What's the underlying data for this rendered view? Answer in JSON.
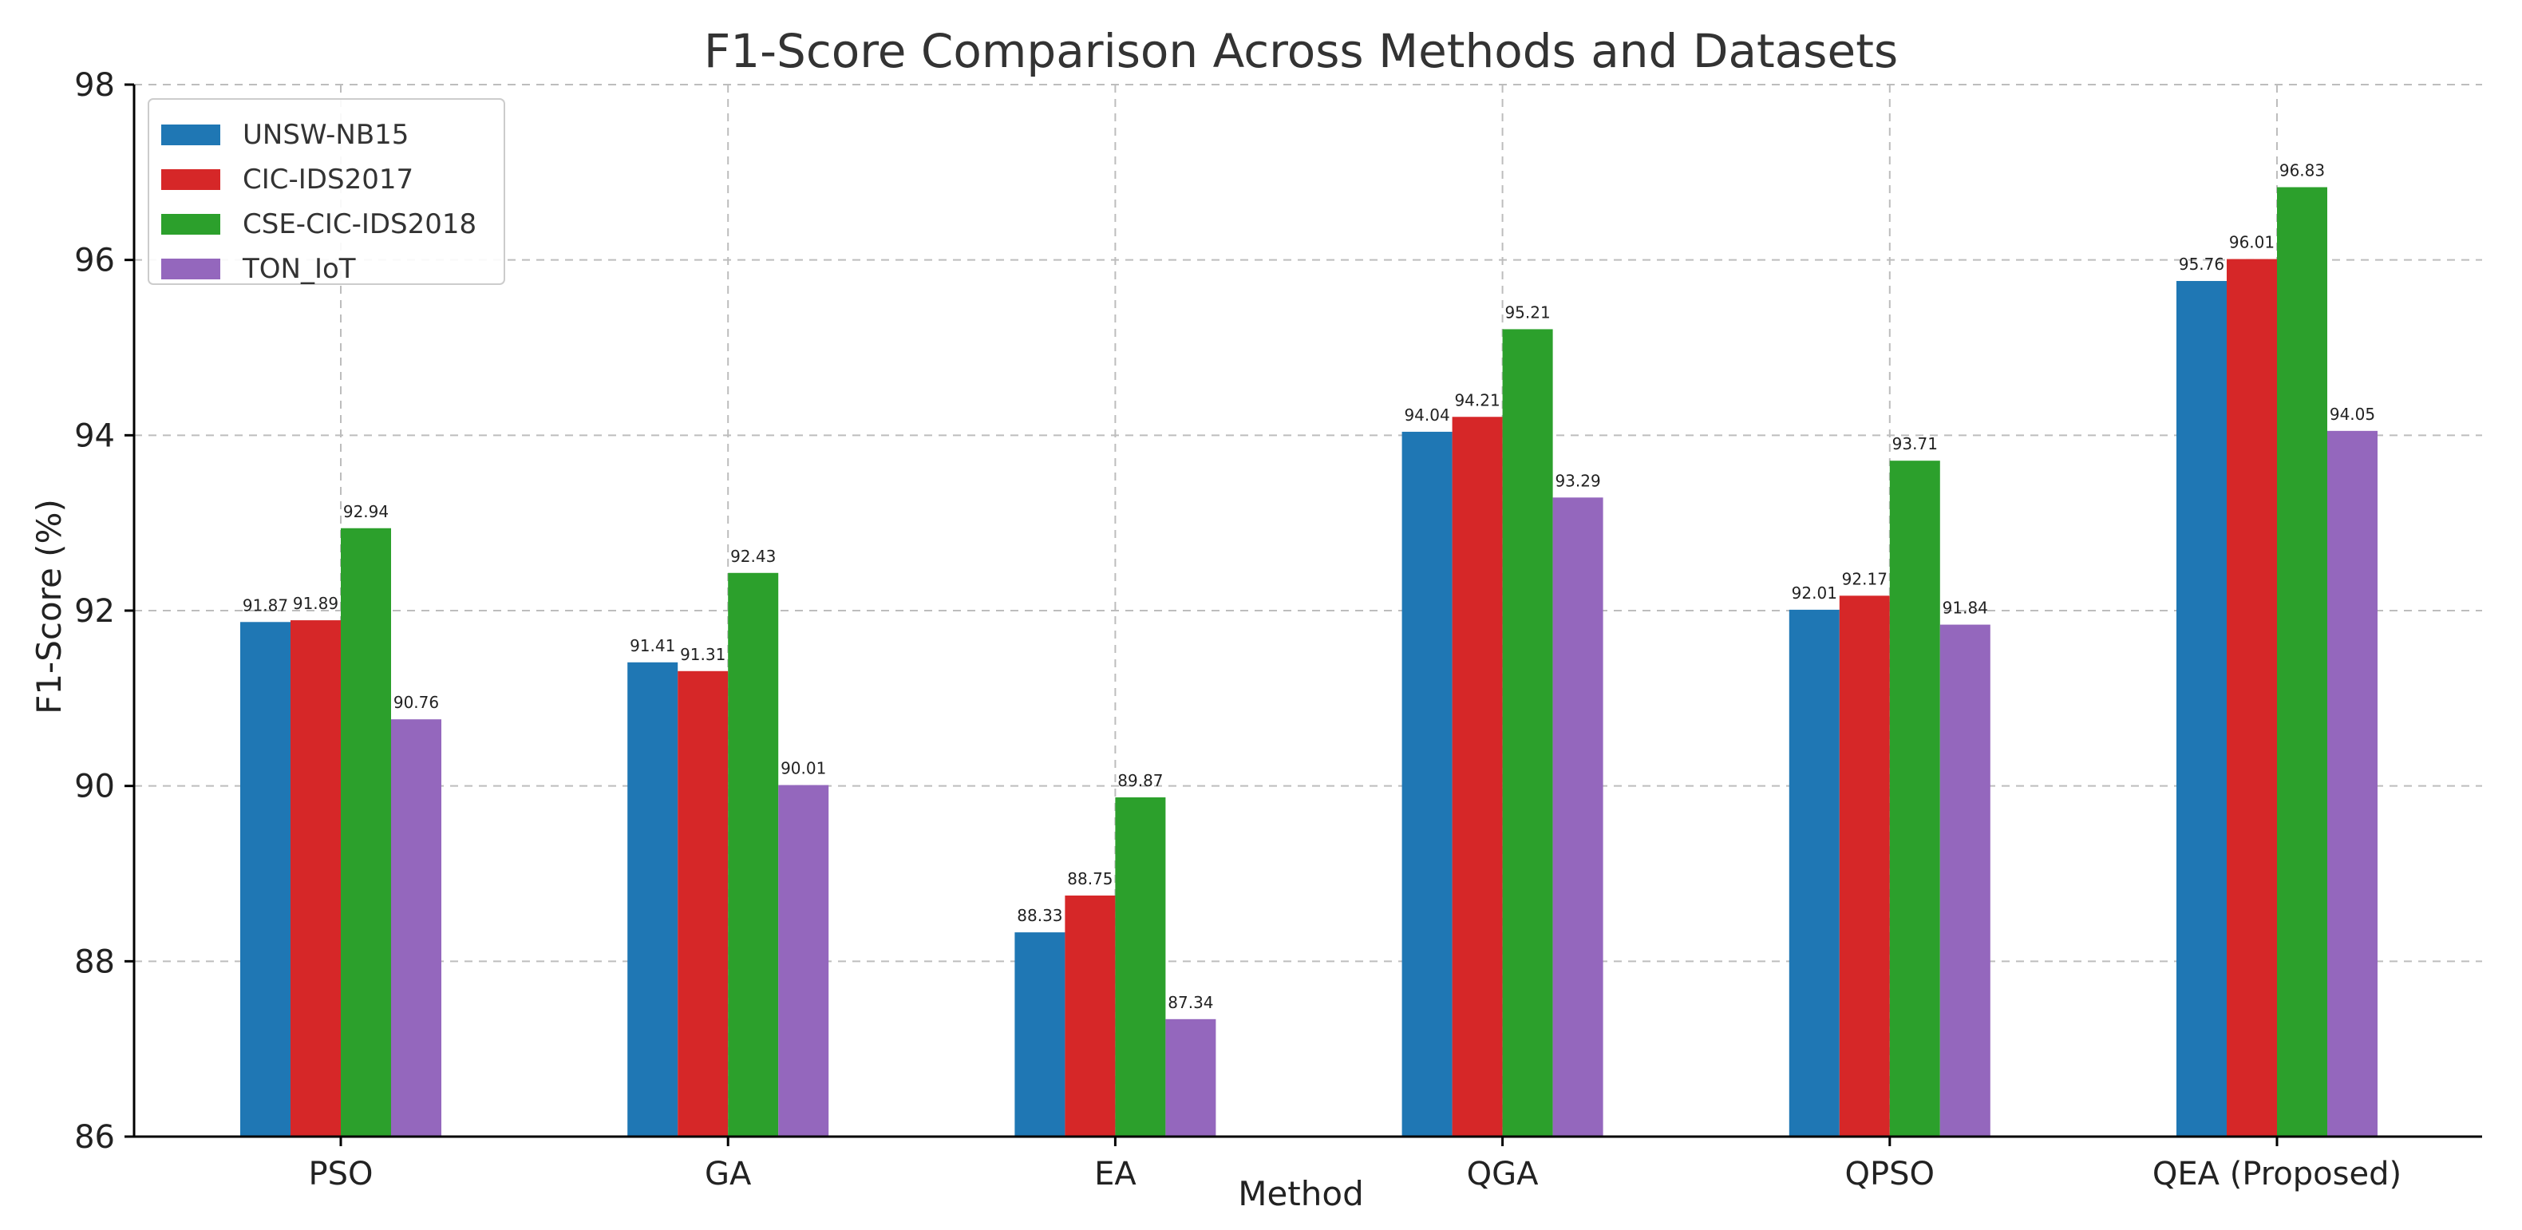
{
  "chart_data": {
    "type": "bar",
    "title": "F1-Score Comparison Across Methods and Datasets",
    "xlabel": "Method",
    "ylabel": "F1-Score (%)",
    "ylim": [
      86,
      98
    ],
    "yticks": [
      86,
      88,
      90,
      92,
      94,
      96,
      98
    ],
    "grid": true,
    "legend_position": "top-left",
    "categories": [
      "PSO",
      "GA",
      "EA",
      "QGA",
      "QPSO",
      "QEA (Proposed)"
    ],
    "series": [
      {
        "name": "UNSW-NB15",
        "color": "#1f77b4",
        "values": [
          91.87,
          91.41,
          88.33,
          94.04,
          92.01,
          95.76
        ],
        "labels": [
          "91.87",
          "91.41",
          "88.33",
          "94.04",
          "92.01",
          "95.76"
        ]
      },
      {
        "name": "CIC-IDS2017",
        "color": "#d62728",
        "values": [
          91.89,
          91.31,
          88.75,
          94.21,
          92.17,
          96.01
        ],
        "labels": [
          "91.89",
          "91.31",
          "88.75",
          "94.21",
          "92.17",
          "96.01"
        ]
      },
      {
        "name": "CSE-CIC-IDS2018",
        "color": "#2ca02c",
        "values": [
          92.94,
          92.43,
          89.87,
          95.21,
          93.71,
          96.83
        ],
        "labels": [
          "92.94",
          "92.43",
          "89.87",
          "95.21",
          "93.71",
          "96.83"
        ]
      },
      {
        "name": "TON_IoT",
        "color": "#9467bd",
        "values": [
          90.76,
          90.01,
          87.34,
          93.29,
          91.84,
          94.05
        ],
        "labels": [
          "90.76",
          "90.01",
          "87.34",
          "93.29",
          "91.84",
          "94.05"
        ]
      }
    ]
  }
}
